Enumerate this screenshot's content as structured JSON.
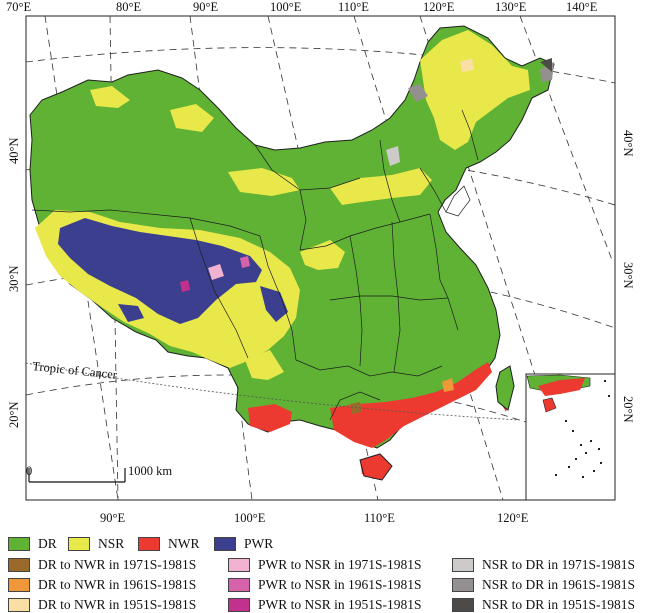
{
  "map": {
    "top_longitudes": [
      "70°E",
      "80°E",
      "90°E",
      "100°E",
      "110°E",
      "120°E",
      "130°E",
      "140°E"
    ],
    "bottom_longitudes": [
      "90°E",
      "100°E",
      "110°E",
      "120°E"
    ],
    "latitudes": [
      "40°N",
      "30°N",
      "20°N"
    ],
    "tropic_label": "Tropic of Cancer",
    "scale_start": "0",
    "scale_end": "1000 km"
  },
  "legend": {
    "row1": [
      {
        "label": "DR",
        "color": "#5fb233"
      },
      {
        "label": "NSR",
        "color": "#e8e84a"
      },
      {
        "label": "NWR",
        "color": "#ec3a30"
      },
      {
        "label": "PWR",
        "color": "#3c3f8e"
      }
    ],
    "transitions": [
      {
        "label": "DR to NWR in 1971S-1981S",
        "color": "#9a6a2a"
      },
      {
        "label": "PWR to NSR in 1971S-1981S",
        "color": "#f2b2d2"
      },
      {
        "label": "NSR to DR in 1971S-1981S",
        "color": "#cfcaca"
      },
      {
        "label": "DR to NWR in 1961S-1981S",
        "color": "#f0973a"
      },
      {
        "label": "PWR to NSR in 1961S-1981S",
        "color": "#d463aa"
      },
      {
        "label": "NSR to DR in 1961S-1981S",
        "color": "#959090"
      },
      {
        "label": "DR to NWR in 1951S-1981S",
        "color": "#f9dfa4"
      },
      {
        "label": "PWR to NSR in 1951S-1981S",
        "color": "#c2318e"
      },
      {
        "label": "NSR to DR in 1951S-1981S",
        "color": "#4d4a48"
      }
    ]
  }
}
